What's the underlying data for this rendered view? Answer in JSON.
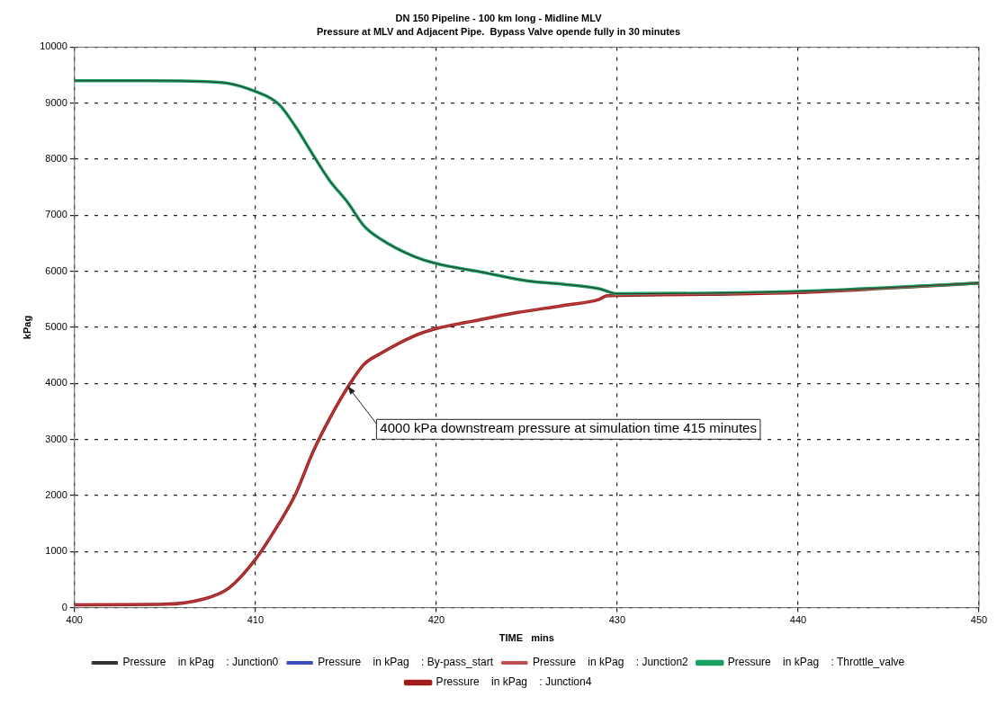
{
  "chart_data": {
    "type": "line",
    "title": "DN 150 Pipeline - 100 km long - Midline MLV",
    "subtitle": "Pressure at MLV and Adjacent Pipe.  Bypass Valve opende fully in 30 minutes",
    "xlabel": "TIME   mins",
    "ylabel": "kPag",
    "xlim": [
      400,
      450
    ],
    "xticks": [
      400,
      410,
      420,
      430,
      440,
      450
    ],
    "ylim": [
      0,
      10000
    ],
    "yticks": [
      0,
      1000,
      2000,
      3000,
      4000,
      5000,
      6000,
      7000,
      8000,
      9000,
      10000
    ],
    "grid": true,
    "legend": "bottom",
    "marker": "none",
    "line_style": "solid",
    "annotations": [
      {
        "text": "4000 kPa downstream pressure at simulation time 415 minutes",
        "x": 415,
        "y": 4000
      }
    ],
    "series": [
      {
        "name": "Pressure    in kPag    : Junction0",
        "color": "#333333",
        "x": [
          400,
          404,
          408.1,
          410,
          411.3,
          412.2,
          413.2,
          414.1,
          415.1,
          416,
          416.9,
          418.8,
          420,
          422.6,
          425,
          427,
          429,
          430,
          435,
          440,
          445,
          450
        ],
        "values": [
          9400,
          9400,
          9370,
          9210,
          8980,
          8590,
          8070,
          7620,
          7230,
          6810,
          6580,
          6260,
          6140,
          5980,
          5830,
          5770,
          5690,
          5600,
          5610,
          5640,
          5710,
          5790
        ]
      },
      {
        "name": "Pressure    in kPag    : By-pass_start",
        "color": "#3a4fc0"
      },
      {
        "name": "Pressure    in kPag    : Junction2",
        "color": "#c0504d",
        "x": [
          400,
          405,
          407.1,
          408.5,
          410,
          411.3,
          412.2,
          413.2,
          414.1,
          415.2,
          416,
          416.9,
          418.8,
          420,
          422,
          424.4,
          427,
          429,
          429.4,
          430,
          435,
          440,
          445,
          450
        ],
        "values": [
          50,
          60,
          150,
          340,
          860,
          1500,
          2010,
          2790,
          3370,
          3980,
          4340,
          4530,
          4850,
          4980,
          5110,
          5260,
          5390,
          5500,
          5560,
          5570,
          5590,
          5620,
          5700,
          5790
        ]
      },
      {
        "name": "Pressure    in kPag    : Throttle_valve",
        "color": "#1aa060",
        "x": [
          400,
          404,
          408.1,
          410,
          411.3,
          412.2,
          413.2,
          414.1,
          415.1,
          416,
          416.9,
          418.8,
          420,
          422.6,
          425,
          427,
          429,
          430,
          435,
          440,
          445,
          450
        ],
        "values": [
          9400,
          9400,
          9370,
          9210,
          8980,
          8590,
          8070,
          7620,
          7230,
          6810,
          6580,
          6260,
          6140,
          5980,
          5830,
          5770,
          5690,
          5600,
          5610,
          5640,
          5710,
          5790
        ]
      },
      {
        "name": "Pressure    in kPag    : Junction4",
        "color": "#a01c1c",
        "x": [
          400,
          405,
          407.1,
          408.5,
          410,
          411.3,
          412.2,
          413.2,
          414.1,
          415.2,
          416,
          416.9,
          418.8,
          420,
          422,
          424.4,
          427,
          429,
          429.4,
          430,
          435,
          440,
          445,
          450
        ],
        "values": [
          50,
          60,
          150,
          340,
          860,
          1500,
          2010,
          2790,
          3370,
          3980,
          4340,
          4530,
          4850,
          4980,
          5110,
          5260,
          5390,
          5500,
          5560,
          5570,
          5590,
          5620,
          5700,
          5790
        ]
      }
    ]
  }
}
